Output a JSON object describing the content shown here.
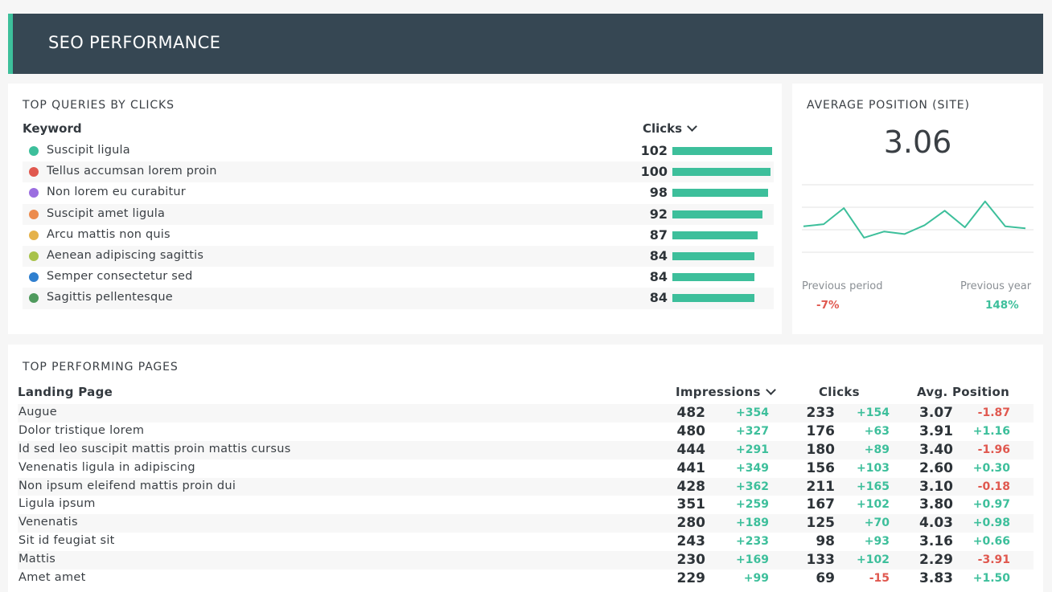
{
  "header": {
    "title": "SEO PERFORMANCE"
  },
  "colors": {
    "accent": "#3dbf9b",
    "banner": "#364753",
    "positive": "#3dbf9b",
    "negative": "#e0584f"
  },
  "queries": {
    "title": "TOP QUERIES BY CLICKS",
    "col_keyword": "Keyword",
    "col_clicks": "Clicks",
    "rows": [
      {
        "label": "Suscipit ligula",
        "value": 102,
        "color": "#3dbf9b"
      },
      {
        "label": "Tellus accumsan lorem proin",
        "value": 100,
        "color": "#e0584f"
      },
      {
        "label": "Non lorem eu curabitur",
        "value": 98,
        "color": "#9b6ee0"
      },
      {
        "label": "Suscipit amet ligula",
        "value": 92,
        "color": "#ec8b4d"
      },
      {
        "label": "Arcu mattis non quis",
        "value": 87,
        "color": "#e5b24a"
      },
      {
        "label": "Aenean adipiscing sagittis",
        "value": 84,
        "color": "#a8c24a"
      },
      {
        "label": "Semper consectetur sed",
        "value": 84,
        "color": "#2f7fcf"
      },
      {
        "label": "Sagittis pellentesque",
        "value": 84,
        "color": "#4f9a5d"
      }
    ]
  },
  "avg_position": {
    "title": "AVERAGE POSITION (SITE)",
    "value": "3.06",
    "sparkline": [
      3.4,
      3.36,
      3.05,
      3.62,
      3.5,
      3.55,
      3.38,
      3.1,
      3.42,
      2.92,
      3.4,
      3.44
    ],
    "sparkline_range": [
      2.6,
      3.9
    ],
    "previous_period_label": "Previous period",
    "previous_period_value": "-7%",
    "previous_year_label": "Previous year",
    "previous_year_value": "148%"
  },
  "pages": {
    "title": "TOP PERFORMING PAGES",
    "col_page": "Landing Page",
    "col_impressions": "Impressions",
    "col_clicks": "Clicks",
    "col_position": "Avg. Position",
    "rows": [
      {
        "label": "Augue",
        "impressions": "482",
        "imp_delta": "+354",
        "clicks": "233",
        "clicks_delta": "+154",
        "position": "3.07",
        "pos_delta": "-1.87"
      },
      {
        "label": "Dolor tristique lorem",
        "impressions": "480",
        "imp_delta": "+327",
        "clicks": "176",
        "clicks_delta": "+63",
        "position": "3.91",
        "pos_delta": "+1.16"
      },
      {
        "label": "Id sed leo suscipit mattis proin mattis cursus",
        "impressions": "444",
        "imp_delta": "+291",
        "clicks": "180",
        "clicks_delta": "+89",
        "position": "3.40",
        "pos_delta": "-1.96"
      },
      {
        "label": "Venenatis ligula in adipiscing",
        "impressions": "441",
        "imp_delta": "+349",
        "clicks": "156",
        "clicks_delta": "+103",
        "position": "2.60",
        "pos_delta": "+0.30"
      },
      {
        "label": "Non ipsum eleifend mattis proin dui",
        "impressions": "428",
        "imp_delta": "+362",
        "clicks": "211",
        "clicks_delta": "+165",
        "position": "3.10",
        "pos_delta": "-0.18"
      },
      {
        "label": "Ligula ipsum",
        "impressions": "351",
        "imp_delta": "+259",
        "clicks": "167",
        "clicks_delta": "+102",
        "position": "3.80",
        "pos_delta": "+0.97"
      },
      {
        "label": "Venenatis",
        "impressions": "280",
        "imp_delta": "+189",
        "clicks": "125",
        "clicks_delta": "+70",
        "position": "4.03",
        "pos_delta": "+0.98"
      },
      {
        "label": "Sit id feugiat sit",
        "impressions": "243",
        "imp_delta": "+233",
        "clicks": "98",
        "clicks_delta": "+93",
        "position": "3.16",
        "pos_delta": "+0.66"
      },
      {
        "label": "Mattis",
        "impressions": "230",
        "imp_delta": "+169",
        "clicks": "133",
        "clicks_delta": "+102",
        "position": "2.29",
        "pos_delta": "-3.91"
      },
      {
        "label": "Amet amet",
        "impressions": "229",
        "imp_delta": "+99",
        "clicks": "69",
        "clicks_delta": "-15",
        "position": "3.83",
        "pos_delta": "+1.50"
      }
    ]
  }
}
